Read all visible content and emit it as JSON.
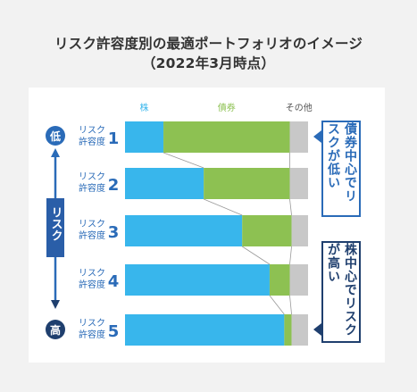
{
  "title": {
    "line1": "リスク許容度別の最適ポートフォリオのイメージ",
    "line2": "（2022年3月時点）"
  },
  "colors": {
    "stock": "#38b6ec",
    "bond": "#8dc152",
    "other": "#c8c8c8",
    "low_circle": "#2a6bb8",
    "high_circle": "#1f3f6e"
  },
  "risk_axis": {
    "low": "低",
    "high": "高",
    "label": "リスク"
  },
  "notes": {
    "bond": "債券中心でリスクが低い",
    "stock": "株中心でリスクが高い"
  },
  "chart_data": {
    "type": "bar",
    "orientation": "horizontal",
    "stacked": true,
    "title": "リスク許容度別の最適ポートフォリオのイメージ",
    "subtitle": "（2022年3月時点）",
    "categories": [
      "リスク許容度 1",
      "リスク許容度 2",
      "リスク許容度 3",
      "リスク許容度 4",
      "リスク許容度 5"
    ],
    "category_prefix": [
      "リスク",
      "許容度"
    ],
    "category_numbers": [
      "1",
      "2",
      "3",
      "4",
      "5"
    ],
    "series": [
      {
        "name": "株",
        "values": [
          21,
          43,
          64,
          79,
          87
        ]
      },
      {
        "name": "債券",
        "values": [
          69,
          47,
          27,
          11,
          4
        ]
      },
      {
        "name": "その他",
        "values": [
          10,
          10,
          9,
          10,
          9
        ]
      }
    ],
    "xlim": [
      0,
      100
    ],
    "grid": false,
    "legend": "top"
  }
}
